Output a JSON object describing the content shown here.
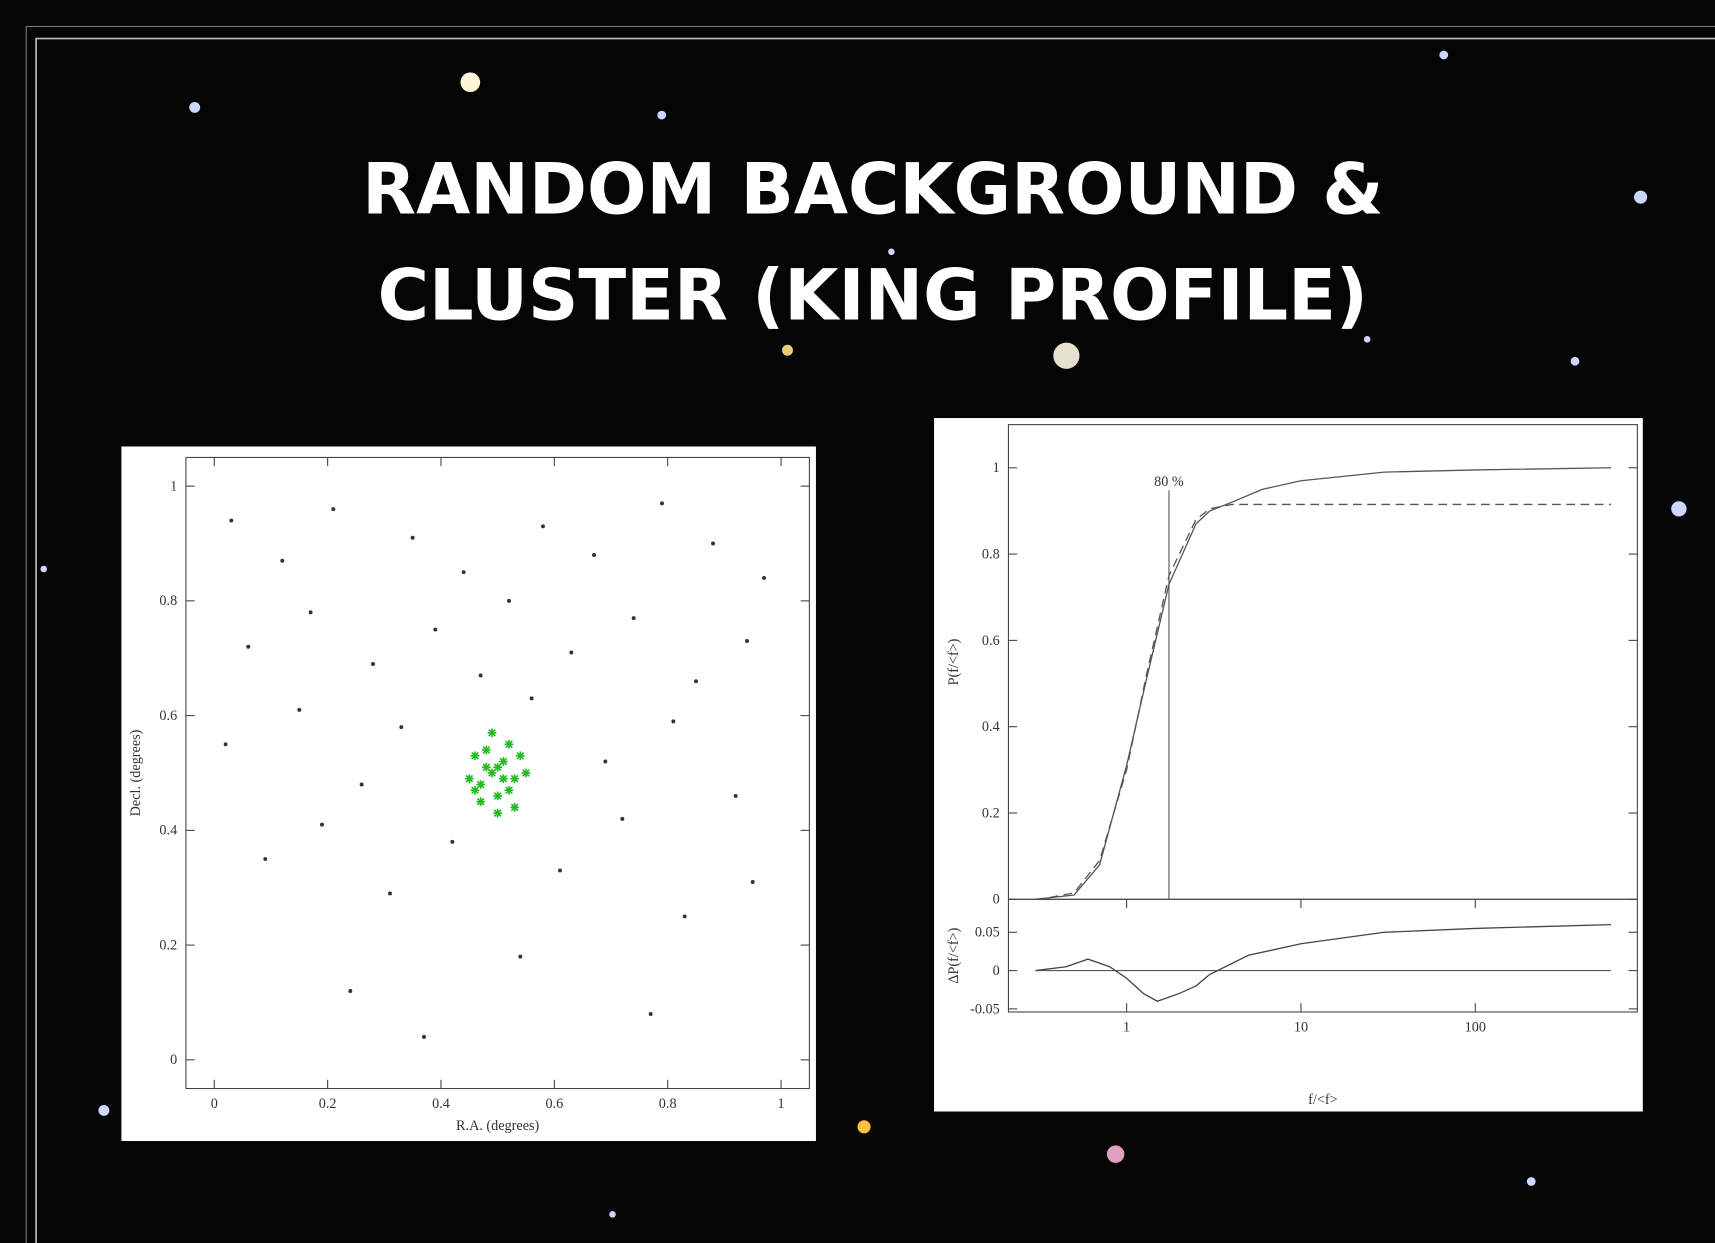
{
  "slide": {
    "title_lines": [
      "RANDOM BACKGROUND &",
      "CLUSTER (KING PROFILE)"
    ]
  },
  "chart_data": [
    {
      "type": "scatter",
      "xlabel": "R.A. (degrees)",
      "ylabel": "Decl. (degrees)",
      "xlim": [
        -0.05,
        1.05
      ],
      "ylim": [
        -0.05,
        1.05
      ],
      "xticks": [
        0,
        0.2,
        0.4,
        0.6,
        0.8,
        1
      ],
      "yticks": [
        0,
        0.2,
        0.4,
        0.6,
        0.8,
        1
      ],
      "series": [
        {
          "color": "#333333",
          "x": [
            0.03,
            0.12,
            0.21,
            0.35,
            0.44,
            0.58,
            0.67,
            0.79,
            0.88,
            0.97,
            0.06,
            0.17,
            0.28,
            0.39,
            0.52,
            0.63,
            0.74,
            0.85,
            0.94,
            0.02,
            0.15,
            0.26,
            0.33,
            0.47,
            0.56,
            0.69,
            0.81,
            0.92,
            0.09,
            0.19,
            0.31,
            0.42,
            0.61,
            0.72,
            0.83,
            0.95,
            0.24,
            0.54,
            0.77,
            0.37
          ],
          "y": [
            0.94,
            0.87,
            0.96,
            0.91,
            0.85,
            0.93,
            0.88,
            0.97,
            0.9,
            0.84,
            0.72,
            0.78,
            0.69,
            0.75,
            0.8,
            0.71,
            0.77,
            0.66,
            0.73,
            0.55,
            0.61,
            0.48,
            0.58,
            0.67,
            0.63,
            0.52,
            0.59,
            0.46,
            0.35,
            0.41,
            0.29,
            0.38,
            0.33,
            0.42,
            0.25,
            0.31,
            0.12,
            0.18,
            0.08,
            0.04
          ]
        },
        {
          "color": "#22bb22",
          "x": [
            0.49,
            0.51,
            0.47,
            0.53,
            0.5,
            0.46,
            0.52,
            0.48,
            0.55,
            0.45,
            0.5,
            0.49,
            0.52,
            0.47,
            0.51,
            0.54,
            0.48,
            0.5,
            0.46,
            0.53
          ],
          "y": [
            0.5,
            0.52,
            0.48,
            0.49,
            0.46,
            0.53,
            0.55,
            0.51,
            0.5,
            0.49,
            0.43,
            0.57,
            0.47,
            0.45,
            0.49,
            0.53,
            0.54,
            0.51,
            0.47,
            0.44
          ]
        }
      ]
    },
    {
      "type": "line",
      "log_x": true,
      "ylabel": "P(f/<f>)",
      "xlim": [
        0.21,
        850
      ],
      "ylim": [
        0,
        1.1
      ],
      "yticks": [
        0,
        0.2,
        0.4,
        0.6,
        0.8,
        1
      ],
      "x": [
        0.3,
        0.35,
        0.5,
        0.7,
        1,
        1.3,
        1.75,
        2.5,
        3,
        4,
        6,
        10,
        30,
        100,
        600
      ],
      "series": [
        {
          "color": "#555555",
          "dash": false,
          "values": [
            0,
            0.003,
            0.01,
            0.08,
            0.31,
            0.51,
            0.73,
            0.87,
            0.9,
            0.92,
            0.95,
            0.97,
            0.99,
            0.995,
            1
          ]
        },
        {
          "color": "#555555",
          "dash": true,
          "values": [
            0,
            0.003,
            0.015,
            0.09,
            0.3,
            0.52,
            0.75,
            0.88,
            0.905,
            0.915,
            0.915,
            0.915,
            0.915,
            0.915,
            0.915
          ]
        }
      ],
      "annotation": {
        "x": 1.75,
        "label": "80 %"
      }
    },
    {
      "type": "line",
      "log_x": true,
      "xlabel": "f/<f>",
      "ylabel": "ΔP(f/<f>)",
      "xlim": [
        0.21,
        850
      ],
      "ylim": [
        -0.054,
        0.093
      ],
      "xticks": [
        1,
        10,
        100
      ],
      "yticks": [
        -0.05,
        0,
        0.05
      ],
      "reference_line": 0,
      "x": [
        0.3,
        0.45,
        0.6,
        0.8,
        1,
        1.25,
        1.5,
        2,
        2.5,
        3,
        5,
        10,
        30,
        100,
        600
      ],
      "series": [
        {
          "color": "#444444",
          "dash": false,
          "values": [
            0,
            0.005,
            0.015,
            0.005,
            -0.01,
            -0.03,
            -0.04,
            -0.03,
            -0.02,
            -0.005,
            0.02,
            0.035,
            0.05,
            0.055,
            0.06
          ]
        }
      ]
    }
  ]
}
